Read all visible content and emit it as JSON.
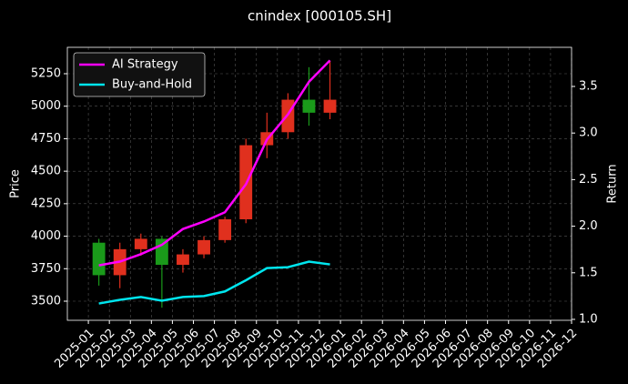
{
  "chart_data": {
    "type": "candlestick",
    "title": "cnindex [000105.SH]",
    "y_label": "Price",
    "y2_label": "Return",
    "x": [
      "2025-01",
      "2025-02",
      "2025-03",
      "2025-04",
      "2025-05",
      "2025-06",
      "2025-07",
      "2025-08",
      "2025-09",
      "2025-10",
      "2025-11",
      "2025-12"
    ],
    "open": [
      3950,
      3700,
      3900,
      3980,
      3780,
      3860,
      3970,
      4130,
      4700,
      4800,
      5050,
      4950
    ],
    "high": [
      3980,
      3950,
      4020,
      4000,
      3900,
      4000,
      4150,
      4750,
      4950,
      5100,
      5300,
      5350
    ],
    "low": [
      3620,
      3600,
      3850,
      3450,
      3720,
      3830,
      3950,
      4100,
      4600,
      4750,
      4850,
      4900
    ],
    "close": [
      3700,
      3900,
      3980,
      3780,
      3860,
      3970,
      4130,
      4700,
      4800,
      5050,
      4950,
      5050
    ],
    "up_color": "#e0301e",
    "down_color": "#1a9a1a",
    "series": [
      {
        "name": "AI Strategy",
        "color": "#ff00ff",
        "axis": "y2",
        "values": [
          1.58,
          1.62,
          1.7,
          1.8,
          1.97,
          2.05,
          2.15,
          2.45,
          2.93,
          3.2,
          3.55,
          3.78
        ]
      },
      {
        "name": "Buy-and-Hold",
        "color": "#00e5ee",
        "axis": "y2",
        "values": [
          1.17,
          1.21,
          1.24,
          1.2,
          1.24,
          1.25,
          1.3,
          1.42,
          1.55,
          1.56,
          1.62,
          1.59
        ]
      }
    ],
    "xlim": [
      "2024-12",
      "2026-12"
    ],
    "xticks": [
      "2025-01",
      "2025-02",
      "2025-03",
      "2025-04",
      "2025-05",
      "2025-06",
      "2025-07",
      "2025-08",
      "2025-09",
      "2025-10",
      "2025-11",
      "2025-12",
      "2026-01",
      "2026-02",
      "2026-03",
      "2026-04",
      "2026-05",
      "2026-06",
      "2026-07",
      "2026-08",
      "2026-09",
      "2026-10",
      "2026-11",
      "2026-12"
    ],
    "ylim": [
      3353,
      5453
    ],
    "yticks": [
      3500,
      3750,
      4000,
      4250,
      4500,
      4750,
      5000,
      5250
    ],
    "y2lim": [
      0.99,
      3.92
    ],
    "y2ticks": [
      {
        "value": 1.0,
        "label": "1.0"
      },
      {
        "value": 1.5,
        "label": "1.5"
      },
      {
        "value": 2.0,
        "label": "2.0"
      },
      {
        "value": 2.5,
        "label": "2.5"
      },
      {
        "value": 3.0,
        "label": "3.0"
      },
      {
        "value": 3.5,
        "label": "3.5"
      }
    ],
    "grid": true,
    "legend": "upper-left"
  }
}
